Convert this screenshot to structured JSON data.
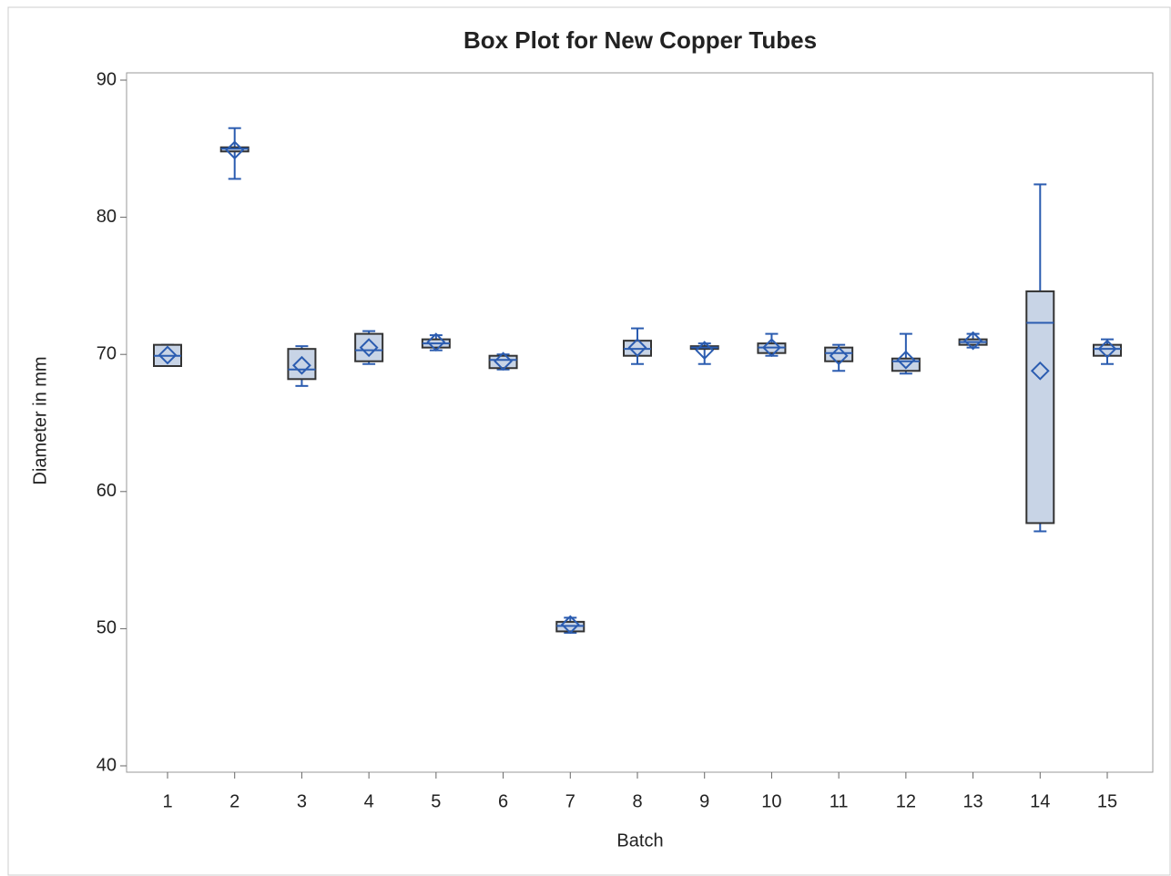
{
  "chart_data": {
    "type": "box",
    "title": "Box Plot for New Copper Tubes",
    "x_label": "Batch",
    "y_label": "Diameter in mm",
    "categories": [
      "1",
      "2",
      "3",
      "4",
      "5",
      "6",
      "7",
      "8",
      "9",
      "10",
      "11",
      "12",
      "13",
      "14",
      "15"
    ],
    "whisker_low": [
      69.15,
      82.8,
      67.7,
      69.3,
      70.3,
      68.9,
      49.7,
      69.3,
      69.3,
      69.9,
      68.8,
      68.6,
      70.5,
      57.1,
      69.3
    ],
    "q1": [
      69.15,
      84.8,
      68.2,
      69.5,
      70.5,
      69.0,
      49.8,
      69.9,
      70.4,
      70.1,
      69.5,
      68.8,
      70.7,
      57.7,
      69.9
    ],
    "median": [
      69.9,
      85.0,
      68.9,
      70.3,
      70.8,
      69.6,
      50.2,
      70.4,
      70.5,
      70.5,
      70.1,
      69.5,
      70.9,
      72.3,
      70.4
    ],
    "q3": [
      70.7,
      85.1,
      70.4,
      71.5,
      71.1,
      69.9,
      50.5,
      71.0,
      70.6,
      70.8,
      70.5,
      69.7,
      71.1,
      74.6,
      70.7
    ],
    "whisker_high": [
      70.7,
      86.5,
      70.6,
      71.7,
      71.4,
      70.0,
      50.8,
      71.9,
      70.8,
      71.5,
      70.7,
      71.5,
      71.5,
      82.4,
      71.1
    ],
    "mean": [
      69.95,
      84.9,
      69.2,
      70.5,
      70.9,
      69.5,
      50.3,
      70.5,
      70.3,
      70.5,
      69.9,
      69.6,
      71.0,
      68.8,
      70.4
    ],
    "box_color": "#c8d4e6",
    "line_color": "#2b5cb0",
    "ylim": [
      40,
      90
    ],
    "yticks": [
      40,
      50,
      60,
      70,
      80,
      90
    ]
  }
}
